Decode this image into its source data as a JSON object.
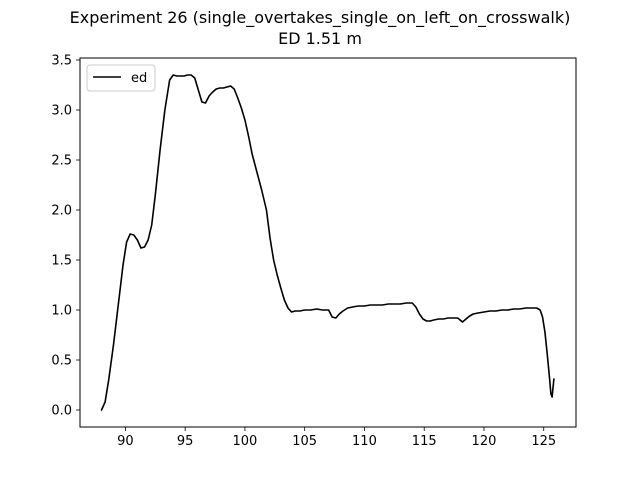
{
  "chart_data": {
    "type": "line",
    "title": "Experiment 26 (single_overtakes_single_on_left_on_crosswalk)",
    "subtitle": "ED 1.51 m",
    "xlabel": "",
    "ylabel": "",
    "xlim": [
      86.2,
      127.7
    ],
    "ylim": [
      -0.17,
      3.52
    ],
    "xticks": [
      90,
      95,
      100,
      105,
      110,
      115,
      120,
      125
    ],
    "xtick_labels": [
      "90",
      "95",
      "100",
      "105",
      "110",
      "115",
      "120",
      "125"
    ],
    "yticks": [
      0.0,
      0.5,
      1.0,
      1.5,
      2.0,
      2.5,
      3.0,
      3.5
    ],
    "ytick_labels": [
      "0.0",
      "0.5",
      "1.0",
      "1.5",
      "2.0",
      "2.5",
      "3.0",
      "3.5"
    ],
    "grid": false,
    "legend_position": "top-left",
    "series": [
      {
        "name": "ed",
        "color": "#000000",
        "x": [
          88.0,
          88.3,
          88.6,
          89.0,
          89.4,
          89.8,
          90.1,
          90.4,
          90.7,
          91.0,
          91.3,
          91.6,
          91.9,
          92.2,
          92.5,
          92.9,
          93.3,
          93.7,
          94.0,
          94.3,
          94.6,
          94.9,
          95.2,
          95.5,
          95.8,
          96.1,
          96.4,
          96.7,
          97.0,
          97.3,
          97.6,
          97.9,
          98.2,
          98.5,
          98.8,
          99.1,
          99.4,
          99.7,
          100.0,
          100.3,
          100.6,
          101.0,
          101.4,
          101.8,
          102.1,
          102.4,
          102.7,
          103.0,
          103.3,
          103.6,
          103.9,
          104.2,
          104.6,
          105.0,
          105.5,
          106.0,
          106.5,
          107.0,
          107.3,
          107.6,
          107.9,
          108.2,
          108.6,
          109.0,
          109.5,
          110.0,
          110.5,
          111.0,
          111.5,
          112.0,
          112.5,
          113.0,
          113.5,
          114.0,
          114.3,
          114.6,
          114.9,
          115.2,
          115.5,
          115.8,
          116.2,
          116.6,
          117.0,
          117.4,
          117.8,
          118.0,
          118.2,
          118.5,
          118.8,
          119.1,
          119.5,
          120.0,
          120.5,
          121.0,
          121.5,
          122.0,
          122.5,
          123.0,
          123.5,
          124.0,
          124.4,
          124.7,
          124.9,
          125.1,
          125.3,
          125.5,
          125.6,
          125.7,
          125.8,
          125.85
        ],
        "values": [
          0.0,
          0.08,
          0.3,
          0.65,
          1.05,
          1.45,
          1.68,
          1.76,
          1.75,
          1.7,
          1.62,
          1.63,
          1.7,
          1.85,
          2.15,
          2.6,
          3.0,
          3.3,
          3.35,
          3.34,
          3.34,
          3.34,
          3.35,
          3.35,
          3.32,
          3.2,
          3.08,
          3.07,
          3.14,
          3.18,
          3.21,
          3.22,
          3.22,
          3.23,
          3.24,
          3.21,
          3.12,
          3.02,
          2.9,
          2.74,
          2.56,
          2.38,
          2.2,
          2.0,
          1.72,
          1.5,
          1.35,
          1.22,
          1.1,
          1.02,
          0.98,
          0.99,
          0.99,
          1.0,
          1.0,
          1.01,
          1.0,
          1.0,
          0.93,
          0.92,
          0.96,
          0.99,
          1.02,
          1.03,
          1.04,
          1.04,
          1.05,
          1.05,
          1.05,
          1.06,
          1.06,
          1.06,
          1.07,
          1.07,
          1.03,
          0.96,
          0.91,
          0.89,
          0.89,
          0.9,
          0.91,
          0.91,
          0.92,
          0.92,
          0.92,
          0.9,
          0.88,
          0.91,
          0.94,
          0.96,
          0.97,
          0.98,
          0.99,
          0.99,
          1.0,
          1.0,
          1.01,
          1.01,
          1.02,
          1.02,
          1.02,
          1.0,
          0.93,
          0.78,
          0.55,
          0.3,
          0.16,
          0.13,
          0.25,
          0.31
        ]
      }
    ]
  }
}
